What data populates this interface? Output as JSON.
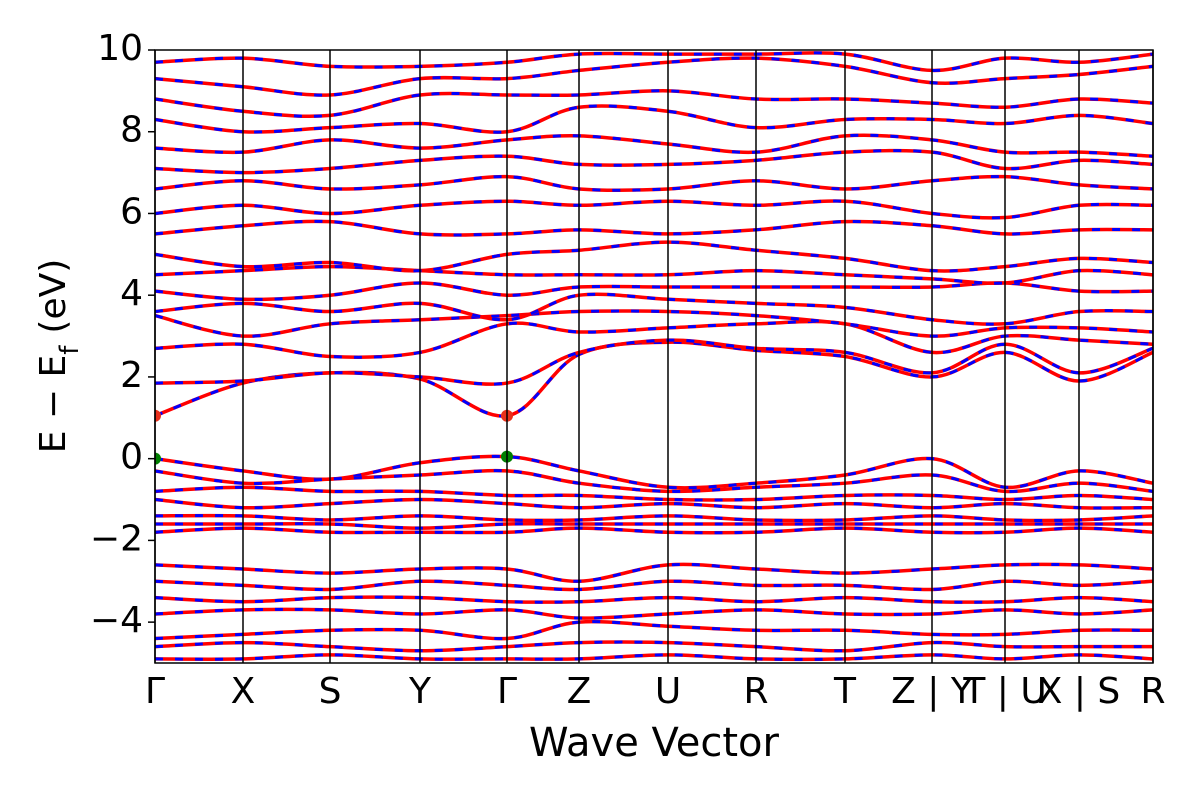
{
  "chart_data": {
    "type": "line",
    "xlabel": "Wave Vector",
    "ylabel": {
      "text": "E − E",
      "subscript": "f",
      "unit": "(eV)"
    },
    "xlim": [
      0,
      9.98
    ],
    "ylim": [
      -5,
      10
    ],
    "xticks": [
      {
        "value": 0,
        "label": "Γ"
      },
      {
        "value": 0.88,
        "label": "X"
      },
      {
        "value": 1.75,
        "label": "S"
      },
      {
        "value": 2.65,
        "label": "Y"
      },
      {
        "value": 3.52,
        "label": "Γ"
      },
      {
        "value": 4.24,
        "label": "Z"
      },
      {
        "value": 5.13,
        "label": "U"
      },
      {
        "value": 6.01,
        "label": "R"
      },
      {
        "value": 6.9,
        "label": "T"
      },
      {
        "value": 7.77,
        "label": "Z | Y"
      },
      {
        "value": 8.5,
        "label": "T | U"
      },
      {
        "value": 9.24,
        "label": "X | S"
      },
      {
        "value": 9.98,
        "label": "R"
      }
    ],
    "yticks": [
      {
        "value": -4,
        "label": "−4"
      },
      {
        "value": -2,
        "label": "−2"
      },
      0,
      2,
      4,
      6,
      8,
      10
    ],
    "grid": false,
    "line_color": "#ff0000",
    "dash_color": "#0000ff",
    "x": [
      0,
      0.88,
      1.75,
      2.65,
      3.52,
      4.24,
      5.13,
      6.01,
      6.9,
      7.77,
      8.5,
      9.24,
      9.98
    ],
    "bands": [
      {
        "values": [
          1.05,
          1.85,
          2.1,
          1.95,
          1.05,
          2.55,
          2.85,
          2.65,
          2.5,
          2.0,
          2.6,
          1.9,
          2.6
        ]
      },
      {
        "values": [
          1.85,
          1.9,
          2.1,
          2.0,
          1.85,
          2.6,
          2.9,
          2.7,
          2.6,
          2.1,
          2.8,
          2.1,
          2.7
        ]
      },
      {
        "values": [
          2.7,
          2.8,
          2.5,
          2.6,
          3.3,
          3.1,
          3.2,
          3.3,
          3.3,
          2.6,
          3.0,
          2.9,
          2.8
        ]
      },
      {
        "values": [
          3.5,
          3.0,
          3.3,
          3.4,
          3.5,
          3.6,
          3.6,
          3.5,
          3.3,
          3.0,
          3.2,
          3.2,
          3.1
        ]
      },
      {
        "values": [
          3.6,
          3.8,
          3.6,
          3.8,
          3.4,
          4.0,
          3.9,
          3.8,
          3.7,
          3.4,
          3.3,
          3.6,
          3.6
        ]
      },
      {
        "values": [
          4.1,
          3.9,
          4.0,
          4.3,
          4.0,
          4.2,
          4.2,
          4.2,
          4.2,
          4.2,
          4.3,
          4.1,
          4.1
        ]
      },
      {
        "values": [
          4.5,
          4.6,
          4.7,
          4.6,
          4.5,
          4.5,
          4.5,
          4.6,
          4.5,
          4.4,
          4.3,
          4.6,
          4.5
        ]
      },
      {
        "values": [
          5.0,
          4.7,
          4.8,
          4.6,
          5.0,
          5.1,
          5.3,
          5.1,
          4.9,
          4.6,
          4.7,
          4.9,
          4.8
        ]
      },
      {
        "values": [
          5.5,
          5.7,
          5.8,
          5.5,
          5.5,
          5.6,
          5.5,
          5.6,
          5.8,
          5.7,
          5.5,
          5.6,
          5.6
        ]
      },
      {
        "values": [
          6.0,
          6.2,
          6.0,
          6.2,
          6.3,
          6.2,
          6.3,
          6.2,
          6.3,
          6.0,
          5.9,
          6.2,
          6.2
        ]
      },
      {
        "values": [
          6.6,
          6.8,
          6.6,
          6.7,
          6.9,
          6.6,
          6.6,
          6.8,
          6.6,
          6.8,
          6.9,
          6.7,
          6.6
        ]
      },
      {
        "values": [
          7.1,
          7.0,
          7.1,
          7.3,
          7.4,
          7.2,
          7.2,
          7.3,
          7.5,
          7.5,
          7.1,
          7.3,
          7.2
        ]
      },
      {
        "values": [
          7.6,
          7.5,
          7.8,
          7.6,
          7.8,
          7.9,
          7.7,
          7.5,
          7.9,
          7.8,
          7.5,
          7.5,
          7.4
        ]
      },
      {
        "values": [
          8.3,
          8.0,
          8.1,
          8.2,
          8.0,
          8.6,
          8.5,
          8.1,
          8.3,
          8.3,
          8.2,
          8.4,
          8.2
        ]
      },
      {
        "values": [
          8.8,
          8.5,
          8.4,
          8.9,
          8.9,
          8.9,
          9.0,
          8.8,
          8.8,
          8.7,
          8.6,
          8.8,
          8.7
        ]
      },
      {
        "values": [
          9.3,
          9.1,
          8.9,
          9.3,
          9.3,
          9.5,
          9.7,
          9.8,
          9.6,
          9.2,
          9.3,
          9.4,
          9.6
        ]
      },
      {
        "values": [
          9.7,
          9.8,
          9.6,
          9.6,
          9.7,
          9.9,
          9.9,
          9.9,
          9.9,
          9.5,
          9.8,
          9.7,
          9.9
        ]
      },
      {
        "values": [
          0,
          -0.3,
          -0.5,
          -0.1,
          0.05,
          -0.3,
          -0.7,
          -0.6,
          -0.4,
          0,
          -0.7,
          -0.3,
          -0.6
        ]
      },
      {
        "values": [
          -0.3,
          -0.6,
          -0.5,
          -0.4,
          -0.3,
          -0.6,
          -0.8,
          -0.7,
          -0.6,
          -0.4,
          -0.8,
          -0.6,
          -0.8
        ]
      },
      {
        "values": [
          -0.8,
          -0.7,
          -0.8,
          -0.8,
          -0.9,
          -0.9,
          -1.0,
          -1.0,
          -0.9,
          -0.9,
          -1.0,
          -0.9,
          -1.0
        ]
      },
      {
        "values": [
          -1.0,
          -1.2,
          -1.1,
          -1.0,
          -1.1,
          -1.2,
          -1.1,
          -1.2,
          -1.1,
          -1.2,
          -1.1,
          -1.2,
          -1.2
        ]
      },
      {
        "values": [
          -1.4,
          -1.4,
          -1.5,
          -1.4,
          -1.5,
          -1.5,
          -1.4,
          -1.5,
          -1.5,
          -1.4,
          -1.5,
          -1.5,
          -1.4
        ]
      },
      {
        "values": [
          -1.6,
          -1.6,
          -1.6,
          -1.7,
          -1.6,
          -1.6,
          -1.6,
          -1.6,
          -1.6,
          -1.6,
          -1.6,
          -1.6,
          -1.6
        ]
      },
      {
        "values": [
          -1.8,
          -1.7,
          -1.8,
          -1.8,
          -1.8,
          -1.7,
          -1.8,
          -1.8,
          -1.7,
          -1.8,
          -1.8,
          -1.7,
          -1.8
        ]
      },
      {
        "values": [
          -2.6,
          -2.7,
          -2.8,
          -2.7,
          -2.7,
          -3.0,
          -2.6,
          -2.7,
          -2.8,
          -2.7,
          -2.6,
          -2.6,
          -2.7
        ]
      },
      {
        "values": [
          -3.0,
          -3.1,
          -3.2,
          -3.0,
          -3.1,
          -3.2,
          -3.0,
          -3.1,
          -3.1,
          -3.2,
          -3.0,
          -3.1,
          -3.0
        ]
      },
      {
        "values": [
          -3.4,
          -3.5,
          -3.4,
          -3.4,
          -3.5,
          -3.5,
          -3.4,
          -3.5,
          -3.4,
          -3.5,
          -3.5,
          -3.4,
          -3.5
        ]
      },
      {
        "values": [
          -3.8,
          -3.7,
          -3.7,
          -3.8,
          -3.7,
          -3.9,
          -3.8,
          -3.7,
          -3.8,
          -3.8,
          -3.7,
          -3.8,
          -3.7
        ]
      },
      {
        "values": [
          -4.4,
          -4.3,
          -4.2,
          -4.2,
          -4.4,
          -4.0,
          -4.1,
          -4.2,
          -4.2,
          -4.3,
          -4.3,
          -4.2,
          -4.2
        ]
      },
      {
        "values": [
          -4.6,
          -4.5,
          -4.6,
          -4.7,
          -4.6,
          -4.5,
          -4.5,
          -4.6,
          -4.7,
          -4.5,
          -4.6,
          -4.6,
          -4.6
        ]
      },
      {
        "values": [
          -4.9,
          -4.9,
          -4.8,
          -4.9,
          -4.9,
          -4.9,
          -4.8,
          -4.9,
          -4.9,
          -4.8,
          -4.9,
          -4.8,
          -4.9
        ]
      }
    ],
    "markers": [
      {
        "x": 0,
        "y": 0,
        "color": "#007f00"
      },
      {
        "x": 3.52,
        "y": 0.05,
        "color": "#007f00"
      },
      {
        "x": 0,
        "y": 1.05,
        "color": "#e8301c"
      },
      {
        "x": 3.52,
        "y": 1.05,
        "color": "#e8301c"
      }
    ]
  }
}
